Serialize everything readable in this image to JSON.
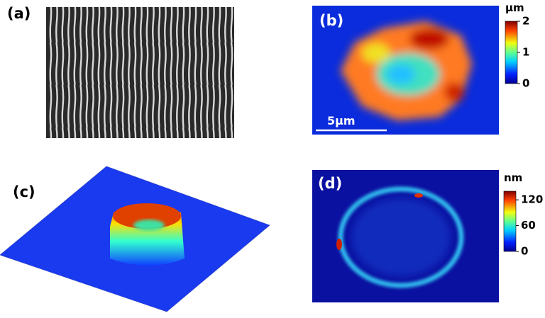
{
  "panels": [
    {
      "label": "(a)"
    },
    {
      "label": "(b)",
      "scale_bar": "5µm",
      "colorbar": {
        "unit": "µm",
        "range": [
          0,
          2
        ],
        "ticks": [
          0,
          1,
          2
        ]
      }
    },
    {
      "label": "(c)"
    },
    {
      "label": "(d)",
      "colorbar": {
        "unit": "nm",
        "range": [
          0,
          140
        ],
        "ticks": [
          0,
          60,
          120
        ]
      }
    }
  ]
}
